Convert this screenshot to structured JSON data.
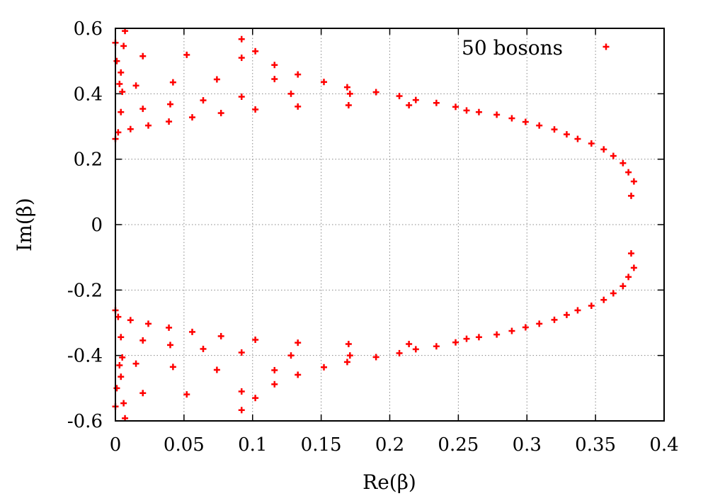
{
  "chart_data": {
    "type": "scatter",
    "xlabel": "Re(β)",
    "ylabel": "Im(β)",
    "xlim": [
      0,
      0.4
    ],
    "ylim": [
      -0.6,
      0.6
    ],
    "xticks": [
      0,
      0.05,
      0.1,
      0.15,
      0.2,
      0.25,
      0.3,
      0.35,
      0.4
    ],
    "xtick_labels": [
      "0",
      "0.05",
      "0.1",
      "0.15",
      "0.2",
      "0.25",
      "0.3",
      "0.35",
      "0.4"
    ],
    "yticks": [
      -0.6,
      -0.4,
      -0.2,
      0,
      0.2,
      0.4,
      0.6
    ],
    "ytick_labels": [
      "-0.6",
      "-0.4",
      "-0.2",
      "0",
      "0.2",
      "0.4",
      "0.6"
    ],
    "grid": true,
    "legend_position": "top-right",
    "marker_color": "#ff0000",
    "series": [
      {
        "name": "50 bosons",
        "points": [
          [
            0.376,
            0.088
          ],
          [
            0.378,
            0.132
          ],
          [
            0.374,
            0.16
          ],
          [
            0.37,
            0.188
          ],
          [
            0.363,
            0.21
          ],
          [
            0.356,
            0.23
          ],
          [
            0.347,
            0.248
          ],
          [
            0.337,
            0.262
          ],
          [
            0.329,
            0.276
          ],
          [
            0.32,
            0.291
          ],
          [
            0.309,
            0.303
          ],
          [
            0.299,
            0.314
          ],
          [
            0.289,
            0.325
          ],
          [
            0.278,
            0.336
          ],
          [
            0.265,
            0.344
          ],
          [
            0.256,
            0.349
          ],
          [
            0.248,
            0.36
          ],
          [
            0.234,
            0.372
          ],
          [
            0.219,
            0.381
          ],
          [
            0.214,
            0.365
          ],
          [
            0.207,
            0.393
          ],
          [
            0.19,
            0.405
          ],
          [
            0.171,
            0.4
          ],
          [
            0.17,
            0.365
          ],
          [
            0.169,
            0.42
          ],
          [
            0.152,
            0.436
          ],
          [
            0.133,
            0.459
          ],
          [
            0.133,
            0.361
          ],
          [
            0.128,
            0.4
          ],
          [
            0.116,
            0.488
          ],
          [
            0.116,
            0.445
          ],
          [
            0.102,
            0.53
          ],
          [
            0.102,
            0.352
          ],
          [
            0.092,
            0.567
          ],
          [
            0.092,
            0.51
          ],
          [
            0.092,
            0.391
          ],
          [
            0.077,
            0.341
          ],
          [
            0.074,
            0.444
          ],
          [
            0.064,
            0.38
          ],
          [
            0.056,
            0.328
          ],
          [
            0.052,
            0.519
          ],
          [
            0.042,
            0.435
          ],
          [
            0.04,
            0.368
          ],
          [
            0.039,
            0.315
          ],
          [
            0.024,
            0.303
          ],
          [
            0.02,
            0.515
          ],
          [
            0.02,
            0.354
          ],
          [
            0.015,
            0.425
          ],
          [
            0.011,
            0.292
          ],
          [
            0.007,
            0.592
          ],
          [
            0.006,
            0.546
          ],
          [
            0.005,
            0.406
          ],
          [
            0.004,
            0.465
          ],
          [
            0.004,
            0.344
          ],
          [
            0.003,
            0.43
          ],
          [
            0.002,
            0.282
          ],
          [
            0.001,
            0.5
          ],
          [
            0.0,
            0.262
          ],
          [
            0.0,
            0.556
          ],
          [
            0.376,
            -0.088
          ],
          [
            0.378,
            -0.132
          ],
          [
            0.374,
            -0.16
          ],
          [
            0.37,
            -0.188
          ],
          [
            0.363,
            -0.21
          ],
          [
            0.356,
            -0.23
          ],
          [
            0.347,
            -0.248
          ],
          [
            0.337,
            -0.262
          ],
          [
            0.329,
            -0.276
          ],
          [
            0.32,
            -0.291
          ],
          [
            0.309,
            -0.303
          ],
          [
            0.299,
            -0.314
          ],
          [
            0.289,
            -0.325
          ],
          [
            0.278,
            -0.336
          ],
          [
            0.265,
            -0.344
          ],
          [
            0.256,
            -0.349
          ],
          [
            0.248,
            -0.36
          ],
          [
            0.234,
            -0.372
          ],
          [
            0.219,
            -0.381
          ],
          [
            0.214,
            -0.365
          ],
          [
            0.207,
            -0.393
          ],
          [
            0.19,
            -0.405
          ],
          [
            0.171,
            -0.4
          ],
          [
            0.17,
            -0.365
          ],
          [
            0.169,
            -0.42
          ],
          [
            0.152,
            -0.436
          ],
          [
            0.133,
            -0.459
          ],
          [
            0.133,
            -0.361
          ],
          [
            0.128,
            -0.4
          ],
          [
            0.116,
            -0.488
          ],
          [
            0.116,
            -0.445
          ],
          [
            0.102,
            -0.53
          ],
          [
            0.102,
            -0.352
          ],
          [
            0.092,
            -0.567
          ],
          [
            0.092,
            -0.51
          ],
          [
            0.092,
            -0.391
          ],
          [
            0.077,
            -0.341
          ],
          [
            0.074,
            -0.444
          ],
          [
            0.064,
            -0.38
          ],
          [
            0.056,
            -0.328
          ],
          [
            0.052,
            -0.519
          ],
          [
            0.042,
            -0.435
          ],
          [
            0.04,
            -0.368
          ],
          [
            0.039,
            -0.315
          ],
          [
            0.024,
            -0.303
          ],
          [
            0.02,
            -0.515
          ],
          [
            0.02,
            -0.354
          ],
          [
            0.015,
            -0.425
          ],
          [
            0.011,
            -0.292
          ],
          [
            0.007,
            -0.592
          ],
          [
            0.006,
            -0.546
          ],
          [
            0.005,
            -0.406
          ],
          [
            0.004,
            -0.465
          ],
          [
            0.004,
            -0.344
          ],
          [
            0.003,
            -0.43
          ],
          [
            0.002,
            -0.282
          ],
          [
            0.001,
            -0.5
          ],
          [
            0.0,
            -0.262
          ],
          [
            0.0,
            -0.556
          ]
        ]
      }
    ]
  }
}
